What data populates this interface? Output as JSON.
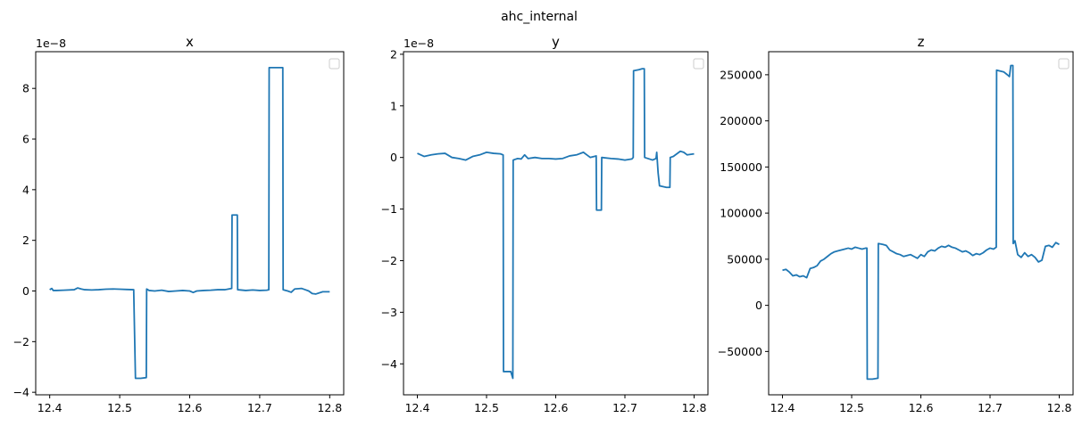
{
  "figure": {
    "suptitle": "ahc_internal"
  },
  "chart_data": [
    {
      "type": "line",
      "title": "x",
      "xlabel": "",
      "ylabel": "",
      "offset_text": "1e−8",
      "xlim": [
        12.38,
        12.82
      ],
      "ylim": [
        -4.1,
        9.45
      ],
      "xticks": [
        12.4,
        12.5,
        12.6,
        12.7,
        12.8
      ],
      "xtick_labels": [
        "12.4",
        "12.5",
        "12.6",
        "12.7",
        "12.8"
      ],
      "yticks": [
        -4,
        -2,
        0,
        2,
        4,
        6,
        8
      ],
      "ytick_labels": [
        "−4",
        "−2",
        "0",
        "2",
        "4",
        "6",
        "8"
      ],
      "legend": "upper right, empty",
      "series": [
        {
          "color": "#1f77b4",
          "x": [
            12.4,
            12.403,
            12.405,
            12.41,
            12.42,
            12.435,
            12.44,
            12.445,
            12.45,
            12.46,
            12.47,
            12.48,
            12.49,
            12.5,
            12.51,
            12.52,
            12.5225,
            12.53,
            12.538,
            12.5385,
            12.542,
            12.55,
            12.56,
            12.57,
            12.58,
            12.59,
            12.6,
            12.605,
            12.61,
            12.62,
            12.63,
            12.64,
            12.65,
            12.66,
            12.6605,
            12.668,
            12.6685,
            12.68,
            12.69,
            12.7,
            12.71,
            12.713,
            12.7135,
            12.733,
            12.7335,
            12.74,
            12.745,
            12.75,
            12.76,
            12.765,
            12.77,
            12.775,
            12.78,
            12.79,
            12.8
          ],
          "y": [
            0.05,
            0.1,
            0.02,
            0.02,
            0.03,
            0.05,
            0.12,
            0.08,
            0.05,
            0.04,
            0.05,
            0.07,
            0.08,
            0.07,
            0.06,
            0.05,
            -3.45,
            -3.45,
            -3.42,
            0.08,
            0.02,
            0.0,
            0.03,
            -0.02,
            0.0,
            0.02,
            0.0,
            -0.06,
            0.0,
            0.02,
            0.03,
            0.05,
            0.05,
            0.1,
            3.0,
            3.0,
            0.05,
            0.02,
            0.04,
            0.02,
            0.03,
            0.05,
            8.82,
            8.82,
            0.05,
            0.0,
            -0.05,
            0.08,
            0.1,
            0.05,
            0.0,
            -0.1,
            -0.12,
            -0.03,
            -0.03
          ]
        }
      ]
    },
    {
      "type": "line",
      "title": "y",
      "xlabel": "",
      "ylabel": "",
      "offset_text": "1e−8",
      "xlim": [
        12.38,
        12.82
      ],
      "ylim": [
        -4.6,
        2.05
      ],
      "xticks": [
        12.4,
        12.5,
        12.6,
        12.7,
        12.8
      ],
      "xtick_labels": [
        "12.4",
        "12.5",
        "12.6",
        "12.7",
        "12.8"
      ],
      "yticks": [
        -4,
        -3,
        -2,
        -1,
        0,
        1,
        2
      ],
      "ytick_labels": [
        "−4",
        "−3",
        "−2",
        "−1",
        "0",
        "1",
        "2"
      ],
      "legend": "upper right, empty",
      "series": [
        {
          "color": "#1f77b4",
          "x": [
            12.4,
            12.405,
            12.41,
            12.42,
            12.43,
            12.44,
            12.45,
            12.46,
            12.47,
            12.48,
            12.49,
            12.5,
            12.51,
            12.52,
            12.524,
            12.5245,
            12.535,
            12.538,
            12.5385,
            12.545,
            12.55,
            12.555,
            12.56,
            12.57,
            12.58,
            12.59,
            12.6,
            12.61,
            12.62,
            12.63,
            12.64,
            12.645,
            12.65,
            12.6585,
            12.659,
            12.666,
            12.6665,
            12.68,
            12.69,
            12.7,
            12.71,
            12.712,
            12.7125,
            12.72,
            12.725,
            12.728,
            12.7285,
            12.74,
            12.745,
            12.746,
            12.748,
            12.75,
            12.76,
            12.765,
            12.7655,
            12.77,
            12.78,
            12.785,
            12.79,
            12.8
          ],
          "y": [
            0.08,
            0.05,
            0.02,
            0.05,
            0.07,
            0.08,
            0.0,
            -0.02,
            -0.05,
            0.02,
            0.05,
            0.1,
            0.08,
            0.07,
            0.05,
            -4.15,
            -4.15,
            -4.28,
            -0.05,
            -0.02,
            -0.03,
            0.05,
            -0.02,
            0.0,
            -0.02,
            -0.02,
            -0.03,
            -0.02,
            0.03,
            0.05,
            0.1,
            0.05,
            0.0,
            0.03,
            -1.02,
            -1.02,
            0.0,
            -0.02,
            -0.03,
            -0.05,
            -0.03,
            0.0,
            1.68,
            1.7,
            1.72,
            1.72,
            0.0,
            -0.05,
            -0.02,
            0.1,
            -0.3,
            -0.55,
            -0.58,
            -0.58,
            0.0,
            0.02,
            0.12,
            0.1,
            0.05,
            0.07
          ]
        }
      ]
    },
    {
      "type": "line",
      "title": "z",
      "xlabel": "",
      "ylabel": "",
      "offset_text": "",
      "xlim": [
        12.38,
        12.82
      ],
      "ylim": [
        -97000,
        275000
      ],
      "xticks": [
        12.4,
        12.5,
        12.6,
        12.7,
        12.8
      ],
      "xtick_labels": [
        "12.4",
        "12.5",
        "12.6",
        "12.7",
        "12.8"
      ],
      "yticks": [
        -50000,
        0,
        50000,
        100000,
        150000,
        200000,
        250000
      ],
      "ytick_labels": [
        "−50000",
        "0",
        "50000",
        "100000",
        "150000",
        "200000",
        "250000"
      ],
      "legend": "upper right, empty",
      "series": [
        {
          "color": "#1f77b4",
          "x": [
            12.4,
            12.405,
            12.41,
            12.415,
            12.42,
            12.425,
            12.43,
            12.435,
            12.44,
            12.445,
            12.45,
            12.455,
            12.46,
            12.465,
            12.47,
            12.475,
            12.48,
            12.485,
            12.49,
            12.495,
            12.5,
            12.505,
            12.51,
            12.515,
            12.52,
            12.522,
            12.5225,
            12.53,
            12.538,
            12.5385,
            12.545,
            12.55,
            12.555,
            12.56,
            12.565,
            12.57,
            12.575,
            12.58,
            12.585,
            12.59,
            12.595,
            12.6,
            12.605,
            12.61,
            12.615,
            12.62,
            12.625,
            12.63,
            12.635,
            12.64,
            12.645,
            12.65,
            12.655,
            12.66,
            12.665,
            12.67,
            12.675,
            12.68,
            12.685,
            12.69,
            12.695,
            12.7,
            12.705,
            12.709,
            12.7095,
            12.72,
            12.725,
            12.728,
            12.73,
            12.733,
            12.7335,
            12.736,
            12.74,
            12.745,
            12.75,
            12.755,
            12.76,
            12.765,
            12.77,
            12.775,
            12.78,
            12.785,
            12.79,
            12.795,
            12.8
          ],
          "y": [
            38000,
            39000,
            36000,
            32000,
            33000,
            31000,
            32000,
            30000,
            40000,
            41000,
            43000,
            48000,
            50000,
            53000,
            56000,
            58000,
            59000,
            60000,
            61000,
            62000,
            61000,
            63000,
            62000,
            61000,
            62000,
            62000,
            -80000,
            -80000,
            -79000,
            67000,
            66000,
            65000,
            60000,
            58000,
            56000,
            55000,
            53000,
            54000,
            55000,
            53000,
            51000,
            55000,
            53000,
            58000,
            60000,
            59000,
            62000,
            64000,
            63000,
            65000,
            63000,
            62000,
            60000,
            58000,
            59000,
            57000,
            54000,
            56000,
            55000,
            57000,
            60000,
            62000,
            61000,
            63000,
            255000,
            253000,
            250000,
            248000,
            260000,
            260000,
            67000,
            70000,
            55000,
            52000,
            57000,
            53000,
            55000,
            52000,
            47000,
            49000,
            64000,
            65000,
            63000,
            68000,
            66000
          ]
        }
      ]
    }
  ]
}
